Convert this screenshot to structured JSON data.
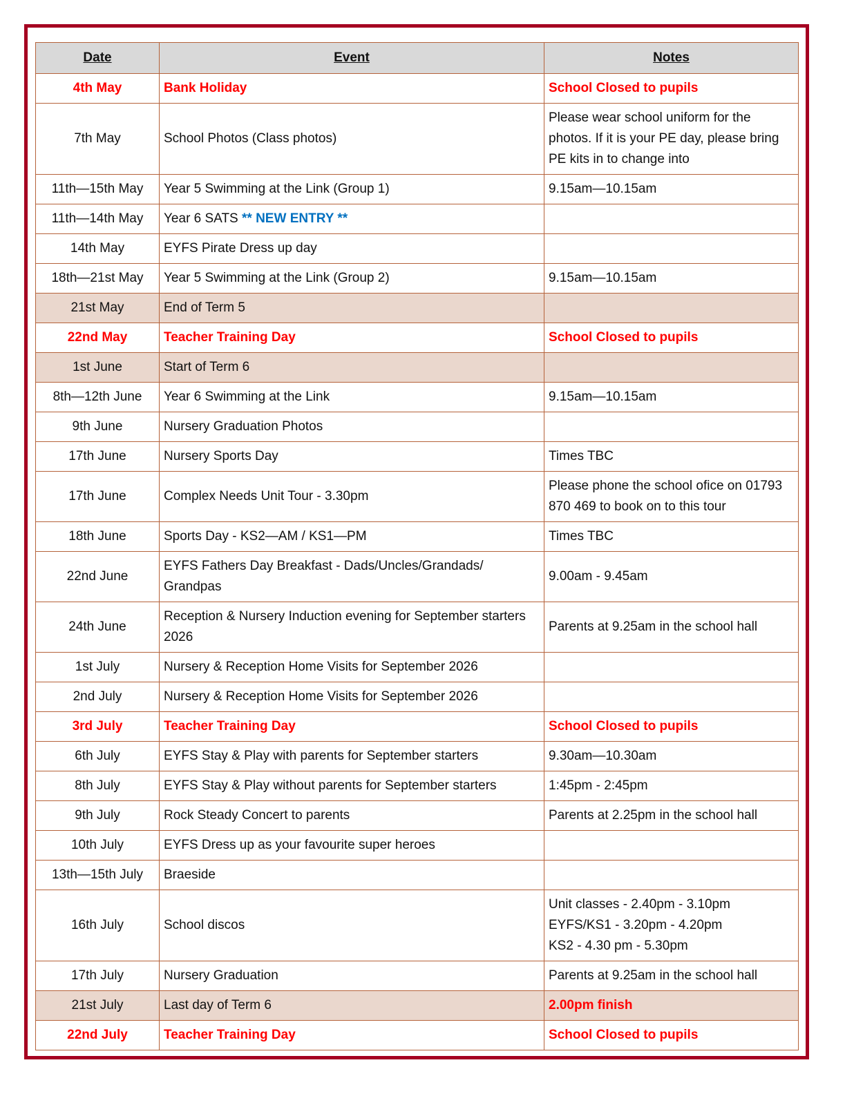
{
  "headers": {
    "date": "Date",
    "event": "Event",
    "notes": "Notes"
  },
  "colors": {
    "frame": "#a50021",
    "grid": "#b5623a",
    "header_bg": "#d9d9d9",
    "shaded_bg": "#ead7cd",
    "red": "#ff0000",
    "blue": "#0070c0"
  },
  "rows": [
    {
      "date": "4th May",
      "event": "Bank Holiday",
      "notes": "School Closed to pupils",
      "style": "red"
    },
    {
      "date": "7th May",
      "event": "School Photos (Class photos)",
      "notes": "Please wear school uniform for the photos.  If it is your PE day, please bring PE kits in to change into"
    },
    {
      "date": "11th—15th May",
      "event": "Year 5 Swimming at the Link (Group 1)",
      "notes": "9.15am—10.15am"
    },
    {
      "date": "11th—14th May",
      "event": "Year 6 SATS ",
      "event_highlight": "** NEW ENTRY **",
      "notes": ""
    },
    {
      "date": "14th May",
      "event": "EYFS Pirate Dress up day",
      "notes": ""
    },
    {
      "date": "18th—21st May",
      "event": "Year 5 Swimming at the Link (Group 2)",
      "notes": "9.15am—10.15am"
    },
    {
      "date": "21st May",
      "event": "End of Term 5",
      "notes": "",
      "style": "shaded"
    },
    {
      "date": "22nd May",
      "event": "Teacher Training Day",
      "notes": "School Closed to pupils",
      "style": "red"
    },
    {
      "date": "1st June",
      "event": "Start of Term 6",
      "notes": "",
      "style": "shaded"
    },
    {
      "date": "8th—12th June",
      "event": "Year 6 Swimming at the Link",
      "notes": "9.15am—10.15am"
    },
    {
      "date": "9th June",
      "event": "Nursery Graduation Photos",
      "notes": ""
    },
    {
      "date": "17th June",
      "event": "Nursery Sports Day",
      "notes": "Times TBC"
    },
    {
      "date": "17th June",
      "event": "Complex Needs Unit Tour  -  3.30pm",
      "notes": "Please phone the school ofice on 01793 870 469 to book on to this tour"
    },
    {
      "date": "18th June",
      "event": "Sports Day  -  KS2—AM   /   KS1—PM",
      "notes": "Times TBC"
    },
    {
      "date": "22nd June",
      "event": "EYFS Fathers Day Breakfast - Dads/Uncles/Grandads/ Grandpas",
      "notes": "9.00am - 9.45am"
    },
    {
      "date": "24th June",
      "event": "Reception & Nursery Induction evening for September starters 2026",
      "notes": "Parents at 9.25am in the school hall"
    },
    {
      "date": "1st July",
      "event": "Nursery & Reception Home Visits for September 2026",
      "notes": ""
    },
    {
      "date": "2nd July",
      "event": "Nursery & Reception Home Visits for September 2026",
      "notes": ""
    },
    {
      "date": "3rd July",
      "event": "Teacher Training Day",
      "notes": "School Closed to pupils",
      "style": "red"
    },
    {
      "date": "6th July",
      "event": "EYFS Stay & Play with parents for September starters",
      "notes": "9.30am—10.30am"
    },
    {
      "date": "8th July",
      "event": "EYFS Stay & Play without parents for September starters",
      "notes": "1:45pm - 2:45pm"
    },
    {
      "date": "9th July",
      "event": "Rock Steady Concert to parents",
      "notes": "Parents at 2.25pm in the school hall"
    },
    {
      "date": "10th July",
      "event": "EYFS Dress up as your favourite super heroes",
      "notes": ""
    },
    {
      "date": "13th—15th July",
      "event": "Braeside",
      "notes": ""
    },
    {
      "date": "16th July",
      "event": "School discos",
      "notes_lines": [
        "Unit classes  -  2.40pm  -  3.10pm",
        "EYFS/KS1  -  3.20pm  -  4.20pm",
        "KS2  -  4.30 pm -  5.30pm"
      ]
    },
    {
      "date": "17th July",
      "event": "Nursery Graduation",
      "notes": "Parents at 9.25am in the school hall"
    },
    {
      "date": "21st July",
      "event": "Last day of Term 6",
      "notes": "2.00pm finish",
      "style": "shaded",
      "notes_style": "red"
    },
    {
      "date": "22nd July",
      "event": "Teacher Training Day",
      "notes": "School Closed to pupils",
      "style": "red"
    }
  ]
}
